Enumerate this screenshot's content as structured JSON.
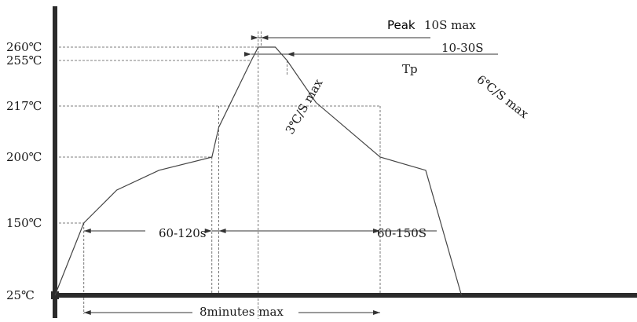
{
  "chart_data": {
    "type": "line",
    "y_ticks": [
      {
        "value": 260,
        "label": "260℃"
      },
      {
        "value": 255,
        "label": "255℃"
      },
      {
        "value": 217,
        "label": "217℃"
      },
      {
        "value": 200,
        "label": "200℃"
      },
      {
        "value": 150,
        "label": "150℃"
      },
      {
        "value": 25,
        "label": "25℃"
      }
    ],
    "profile": {
      "x": [
        0,
        0.71,
        1.52,
        2.56,
        3.86,
        4.03,
        4.83,
        5.0,
        5.07,
        5.42,
        5.71,
        6.42,
        8.0,
        9.12,
        10.0
      ],
      "y": [
        25,
        150,
        175,
        190,
        200,
        210,
        255,
        260,
        260,
        260,
        255,
        220,
        200,
        190,
        25
      ]
    },
    "annotations": {
      "peak": "Peak",
      "peak_time": "10S max",
      "tp": "Tp",
      "time_above_255": "10-30S",
      "ramp_up": "3℃/S max",
      "ramp_down": "6℃/S max",
      "preheat": "60-120s",
      "time_above_217": "60-150S",
      "total_time": "8minutes max"
    }
  }
}
